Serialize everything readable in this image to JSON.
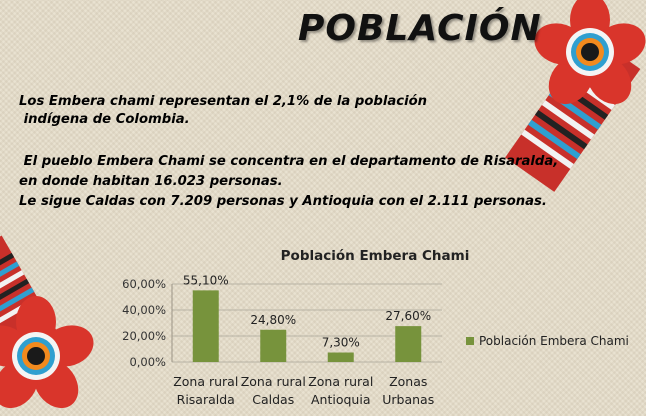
{
  "slide": {
    "title": "POBLACIÓN",
    "paragraph1": [
      "Los Embera chami representan el 2,1% de la población",
      " indígena de Colombia."
    ],
    "paragraph2": [
      " El pueblo Embera Chami se concentra en el departamento de Risaralda,",
      "en donde habitan 16.023 personas.",
      "Le sigue Caldas con 7.209 personas y Antioquia con el 2.111 personas."
    ]
  },
  "chart_data": {
    "type": "bar",
    "title": "Población Embera Chami",
    "categories": [
      [
        "Zona rural",
        "Risaralda"
      ],
      [
        "Zona rural",
        "Caldas"
      ],
      [
        "Zona rural",
        "Antioquia"
      ],
      [
        "Zonas",
        "Urbanas"
      ]
    ],
    "series": [
      {
        "name": "Población Embera Chami",
        "values": [
          55.1,
          24.8,
          7.3,
          27.6
        ],
        "color": "#77933c"
      }
    ],
    "data_labels": [
      "55,10%",
      "24,80%",
      "7,30%",
      "27,60%"
    ],
    "yticks": [
      "0,00%",
      "20,00%",
      "40,00%",
      "60,00%"
    ],
    "ylim": [
      0,
      60
    ],
    "grid": true,
    "legend": "right"
  },
  "decor": {
    "beadwork": "beaded-flower-icon"
  }
}
